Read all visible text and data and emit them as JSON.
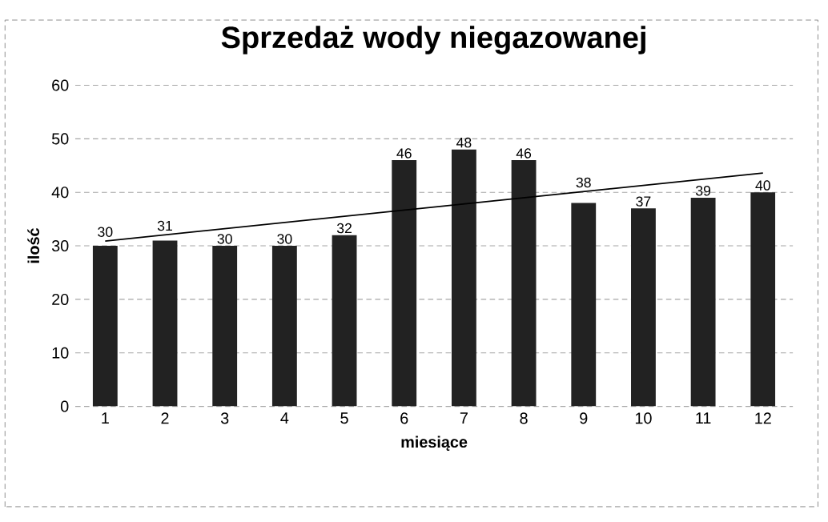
{
  "chart_data": {
    "type": "bar",
    "title": "Sprzedaż wody niegazowanej",
    "xlabel": "miesiące",
    "ylabel": "ilość",
    "x": [
      1,
      2,
      3,
      4,
      5,
      6,
      7,
      8,
      9,
      10,
      11,
      12
    ],
    "xlim": [
      0.5,
      12.5
    ],
    "xticks": [
      1,
      2,
      3,
      4,
      5,
      6,
      7,
      8,
      9,
      10,
      11,
      12
    ],
    "ylim": [
      0,
      60
    ],
    "yticks": [
      0,
      10,
      20,
      30,
      40,
      50,
      60
    ],
    "grid": "y",
    "series": [
      {
        "color": "#222222",
        "values": [
          30,
          31,
          30,
          30,
          32,
          46,
          48,
          46,
          38,
          37,
          39,
          40
        ],
        "value_labels": [
          "30",
          "31",
          "30",
          "30",
          "32",
          "46",
          "48",
          "46",
          "38",
          "37",
          "39",
          "40"
        ]
      },
      {
        "type": "line",
        "color": "#000000",
        "x": [
          1,
          12
        ],
        "values": [
          30.9,
          43.6
        ]
      }
    ]
  }
}
